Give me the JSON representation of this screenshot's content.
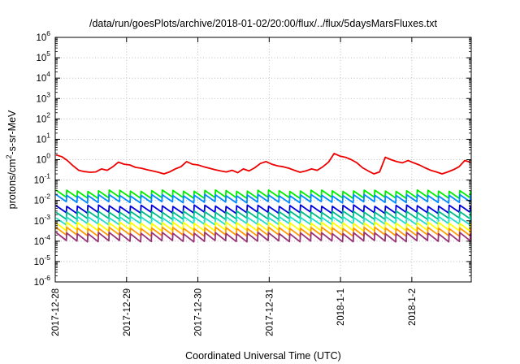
{
  "chart_data": {
    "type": "line",
    "title": "/data/run/goesPlots/archive/2018-01-02/20:00/flux/../flux/5daysMarsFluxes.txt",
    "xlabel": "Coordinated Universal Time (UTC)",
    "ylabel": {
      "pre": "protons/cm",
      "sup": "2",
      "post": "-s-sr-MeV"
    },
    "y_scale": "log",
    "ylim": [
      1e-06,
      1000000.0
    ],
    "y_ticks": [
      {
        "exp": "-6"
      },
      {
        "exp": "-5"
      },
      {
        "exp": "-4"
      },
      {
        "exp": "-3"
      },
      {
        "exp": "-2"
      },
      {
        "exp": "-1"
      },
      {
        "exp": "0"
      },
      {
        "exp": "1"
      },
      {
        "exp": "2"
      },
      {
        "exp": "3"
      },
      {
        "exp": "4"
      },
      {
        "exp": "5"
      },
      {
        "exp": "6"
      }
    ],
    "x_range": [
      "2017-12-28 00:00",
      "2018-01-02 20:00"
    ],
    "x_ticks": [
      "2017-12-28",
      "2017-12-29",
      "2017-12-30",
      "2017-12-31",
      "2018-1-1",
      "2018-1-2"
    ],
    "grid": true,
    "legend": "none",
    "series": [
      {
        "color": "#ee0000",
        "cycles": 11,
        "values": [
          1.7,
          1.4,
          0.9,
          0.5,
          0.3,
          0.26,
          0.24,
          0.25,
          0.35,
          0.3,
          0.45,
          0.75,
          0.6,
          0.55,
          0.42,
          0.38,
          0.32,
          0.28,
          0.24,
          0.2,
          0.25,
          0.35,
          0.45,
          0.8,
          0.6,
          0.55,
          0.45,
          0.38,
          0.32,
          0.28,
          0.25,
          0.3,
          0.23,
          0.35,
          0.28,
          0.4,
          0.65,
          0.8,
          0.6,
          0.5,
          0.45,
          0.38,
          0.3,
          0.24,
          0.28,
          0.35,
          0.3,
          0.45,
          0.75,
          2.0,
          1.5,
          1.3,
          1.0,
          0.7,
          0.4,
          0.28,
          0.2,
          0.25,
          1.3,
          1.0,
          0.8,
          0.7,
          0.9,
          0.7,
          0.55,
          0.4,
          0.3,
          0.25,
          0.2,
          0.25,
          0.32,
          0.45,
          0.9,
          0.75
        ]
      },
      {
        "color": "#00ee00",
        "base": 0.03,
        "ratio": 0.45
      },
      {
        "color": "#0088ff",
        "base": 0.018,
        "ratio": 0.45
      },
      {
        "color": "#0000dd",
        "base": 0.0055,
        "ratio": 0.45
      },
      {
        "color": "#00bb88",
        "base": 0.0028,
        "ratio": 0.45
      },
      {
        "color": "#22ddcc",
        "base": 0.0015,
        "ratio": 0.45
      },
      {
        "color": "#ffff00",
        "base": 0.0008,
        "ratio": 0.42
      },
      {
        "color": "#ff9900",
        "base": 0.00045,
        "ratio": 0.42
      },
      {
        "color": "#993377",
        "base": 0.00025,
        "ratio": 0.4
      }
    ]
  }
}
